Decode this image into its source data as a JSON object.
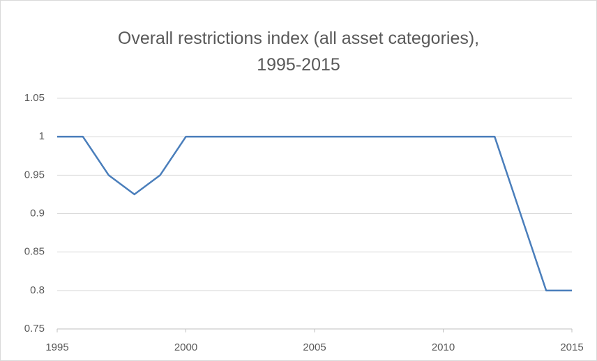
{
  "chart_data": {
    "type": "line",
    "title": "Overall restrictions index (all asset categories),\n1995-2015",
    "x": [
      1995,
      1996,
      1997,
      1998,
      1999,
      2000,
      2001,
      2002,
      2003,
      2004,
      2005,
      2006,
      2007,
      2008,
      2009,
      2010,
      2011,
      2012,
      2013,
      2014,
      2015
    ],
    "series": [
      {
        "name": "Overall restrictions index",
        "color": "#4a7ebb",
        "values": [
          1,
          1,
          0.95,
          0.925,
          0.95,
          1,
          1,
          1,
          1,
          1,
          1,
          1,
          1,
          1,
          1,
          1,
          1,
          1,
          0.9,
          0.8,
          0.8
        ]
      }
    ],
    "xlim": [
      1995,
      2015
    ],
    "xticks": [
      1995,
      2000,
      2005,
      2010,
      2015
    ],
    "ylim": [
      0.75,
      1.05
    ],
    "yticks": [
      1.05,
      1,
      0.95,
      0.9,
      0.85,
      0.8,
      0.75
    ],
    "grid": true
  }
}
